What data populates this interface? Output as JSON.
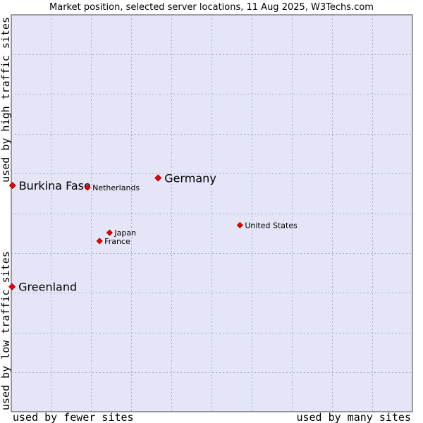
{
  "chart_data": {
    "type": "scatter",
    "title": "Market position, selected server locations, 11 Aug 2025, W3Techs.com",
    "xlabel_left": "used by fewer sites",
    "xlabel_right": "used by many sites",
    "ylabel_bottom": "used by low traffic sites",
    "ylabel_top": "used by high traffic sites",
    "xlim": [
      0,
      100
    ],
    "ylim": [
      0,
      100
    ],
    "grid": true,
    "colors": {
      "plot_background": "#e4e6f8",
      "grid": "#a8a8c8",
      "point": "#ee0000",
      "point_outline": "#990000"
    },
    "points": [
      {
        "label": "Burkina Faso",
        "x": 0.3,
        "y": 57.0,
        "size": "large"
      },
      {
        "label": "Netherlands",
        "x": 19.0,
        "y": 56.5,
        "size": "small"
      },
      {
        "label": "Germany",
        "x": 36.6,
        "y": 58.9,
        "size": "large"
      },
      {
        "label": "United States",
        "x": 57.0,
        "y": 47.0,
        "size": "small"
      },
      {
        "label": "Japan",
        "x": 24.5,
        "y": 45.1,
        "size": "small"
      },
      {
        "label": "France",
        "x": 22.0,
        "y": 43.0,
        "size": "small"
      },
      {
        "label": "Greenland",
        "x": 0.2,
        "y": 31.5,
        "size": "large"
      }
    ]
  }
}
